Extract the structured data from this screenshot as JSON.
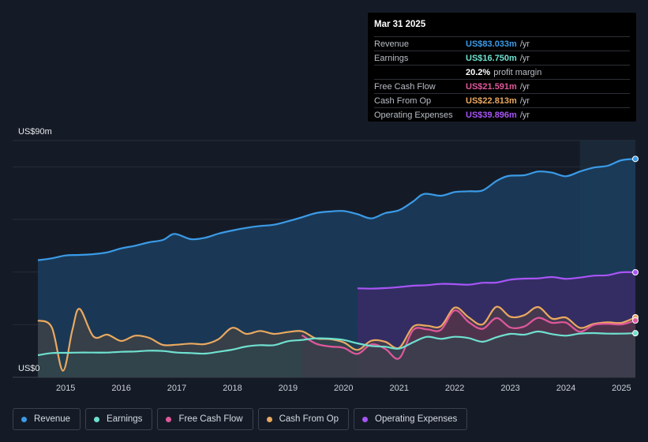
{
  "tooltip": {
    "date": "Mar 31 2025",
    "rows": [
      {
        "label": "Revenue",
        "value": "US$83.033m",
        "unit": "/yr",
        "color": "#3b9be8"
      },
      {
        "label": "Earnings",
        "value": "US$16.750m",
        "unit": "/yr",
        "color": "#6fe0cf"
      },
      {
        "label": "",
        "value": "20.2%",
        "unit": "profit margin",
        "color": "#ffffff"
      },
      {
        "label": "Free Cash Flow",
        "value": "US$21.591m",
        "unit": "/yr",
        "color": "#e0589b"
      },
      {
        "label": "Cash From Op",
        "value": "US$22.813m",
        "unit": "/yr",
        "color": "#eaa960"
      },
      {
        "label": "Operating Expenses",
        "value": "US$39.896m",
        "unit": "/yr",
        "color": "#a855f7"
      }
    ]
  },
  "legend": [
    {
      "label": "Revenue",
      "color": "#3b9be8"
    },
    {
      "label": "Earnings",
      "color": "#6fe0cf"
    },
    {
      "label": "Free Cash Flow",
      "color": "#e0589b"
    },
    {
      "label": "Cash From Op",
      "color": "#eaa960"
    },
    {
      "label": "Operating Expenses",
      "color": "#a855f7"
    }
  ],
  "chart_data": {
    "type": "area",
    "title": "",
    "y_top_label": "US$90m",
    "y_bottom_label": "US$0",
    "ylim": [
      0,
      90
    ],
    "xlim": [
      2014.5,
      2025.25
    ],
    "x_ticks": [
      "2015",
      "2016",
      "2017",
      "2018",
      "2019",
      "2020",
      "2021",
      "2022",
      "2023",
      "2024",
      "2025"
    ],
    "highlight_from": 2024.25,
    "series": [
      {
        "name": "Revenue",
        "color": "#3b9be8",
        "points": [
          [
            2014.5,
            44.5
          ],
          [
            2014.75,
            45.2
          ],
          [
            2015.0,
            46.3
          ],
          [
            2015.25,
            46.5
          ],
          [
            2015.5,
            46.8
          ],
          [
            2015.75,
            47.5
          ],
          [
            2016.0,
            49.0
          ],
          [
            2016.25,
            50.0
          ],
          [
            2016.5,
            51.3
          ],
          [
            2016.75,
            52.2
          ],
          [
            2016.96,
            54.5
          ],
          [
            2017.25,
            52.5
          ],
          [
            2017.5,
            53.0
          ],
          [
            2017.75,
            54.6
          ],
          [
            2018.0,
            55.8
          ],
          [
            2018.25,
            56.8
          ],
          [
            2018.5,
            57.5
          ],
          [
            2018.75,
            58.0
          ],
          [
            2019.0,
            59.3
          ],
          [
            2019.25,
            60.8
          ],
          [
            2019.5,
            62.4
          ],
          [
            2019.75,
            63.0
          ],
          [
            2020.0,
            63.2
          ],
          [
            2020.25,
            62.0
          ],
          [
            2020.5,
            60.4
          ],
          [
            2020.75,
            62.4
          ],
          [
            2021.0,
            63.5
          ],
          [
            2021.25,
            66.8
          ],
          [
            2021.45,
            69.7
          ],
          [
            2021.75,
            69.0
          ],
          [
            2022.0,
            70.4
          ],
          [
            2022.25,
            70.7
          ],
          [
            2022.5,
            71.0
          ],
          [
            2022.75,
            74.6
          ],
          [
            2022.96,
            76.5
          ],
          [
            2023.25,
            76.8
          ],
          [
            2023.5,
            78.2
          ],
          [
            2023.75,
            77.8
          ],
          [
            2024.0,
            76.4
          ],
          [
            2024.25,
            78.2
          ],
          [
            2024.5,
            79.7
          ],
          [
            2024.75,
            80.4
          ],
          [
            2025.0,
            82.5
          ],
          [
            2025.25,
            83.0
          ]
        ]
      },
      {
        "name": "Operating Expenses",
        "color": "#a855f7",
        "points": [
          [
            2020.25,
            33.8
          ],
          [
            2020.5,
            33.7
          ],
          [
            2020.75,
            33.9
          ],
          [
            2021.0,
            34.3
          ],
          [
            2021.25,
            34.8
          ],
          [
            2021.5,
            35.0
          ],
          [
            2021.75,
            35.5
          ],
          [
            2022.0,
            35.4
          ],
          [
            2022.25,
            35.2
          ],
          [
            2022.5,
            35.9
          ],
          [
            2022.75,
            36.0
          ],
          [
            2023.0,
            37.1
          ],
          [
            2023.25,
            37.5
          ],
          [
            2023.5,
            37.6
          ],
          [
            2023.75,
            38.1
          ],
          [
            2024.0,
            37.4
          ],
          [
            2024.25,
            37.9
          ],
          [
            2024.5,
            38.6
          ],
          [
            2024.75,
            38.8
          ],
          [
            2025.0,
            39.9
          ],
          [
            2025.25,
            39.9
          ]
        ]
      },
      {
        "name": "Cash From Op",
        "color": "#eaa960",
        "points": [
          [
            2014.5,
            21.6
          ],
          [
            2014.75,
            19.0
          ],
          [
            2014.95,
            2.5
          ],
          [
            2015.12,
            18.0
          ],
          [
            2015.25,
            26.0
          ],
          [
            2015.5,
            15.5
          ],
          [
            2015.75,
            16.2
          ],
          [
            2016.0,
            13.8
          ],
          [
            2016.25,
            15.8
          ],
          [
            2016.5,
            15.0
          ],
          [
            2016.75,
            12.3
          ],
          [
            2017.0,
            12.4
          ],
          [
            2017.25,
            12.8
          ],
          [
            2017.5,
            12.6
          ],
          [
            2017.75,
            14.5
          ],
          [
            2018.0,
            18.8
          ],
          [
            2018.25,
            16.5
          ],
          [
            2018.5,
            17.6
          ],
          [
            2018.75,
            16.5
          ],
          [
            2019.0,
            17.2
          ],
          [
            2019.25,
            17.5
          ],
          [
            2019.5,
            14.8
          ],
          [
            2019.75,
            14.5
          ],
          [
            2020.0,
            13.3
          ],
          [
            2020.25,
            10.4
          ],
          [
            2020.5,
            13.9
          ],
          [
            2020.75,
            13.5
          ],
          [
            2021.0,
            11.2
          ],
          [
            2021.25,
            19.2
          ],
          [
            2021.5,
            19.6
          ],
          [
            2021.75,
            19.4
          ],
          [
            2022.0,
            26.5
          ],
          [
            2022.25,
            22.8
          ],
          [
            2022.5,
            20.1
          ],
          [
            2022.75,
            26.8
          ],
          [
            2023.0,
            23.0
          ],
          [
            2023.25,
            23.6
          ],
          [
            2023.5,
            26.7
          ],
          [
            2023.75,
            22.3
          ],
          [
            2024.0,
            22.7
          ],
          [
            2024.25,
            18.8
          ],
          [
            2024.5,
            20.3
          ],
          [
            2024.75,
            20.9
          ],
          [
            2025.0,
            20.7
          ],
          [
            2025.25,
            22.8
          ]
        ]
      },
      {
        "name": "Free Cash Flow",
        "color": "#e0589b",
        "points": [
          [
            2019.25,
            16.0
          ],
          [
            2019.5,
            12.8
          ],
          [
            2019.75,
            11.7
          ],
          [
            2020.0,
            11.2
          ],
          [
            2020.25,
            8.9
          ],
          [
            2020.5,
            12.5
          ],
          [
            2020.75,
            10.8
          ],
          [
            2021.0,
            7.2
          ],
          [
            2021.25,
            17.9
          ],
          [
            2021.5,
            18.2
          ],
          [
            2021.75,
            18.0
          ],
          [
            2022.0,
            25.4
          ],
          [
            2022.25,
            21.0
          ],
          [
            2022.5,
            18.4
          ],
          [
            2022.75,
            22.5
          ],
          [
            2023.0,
            18.9
          ],
          [
            2023.25,
            19.3
          ],
          [
            2023.5,
            22.6
          ],
          [
            2023.75,
            20.7
          ],
          [
            2024.0,
            20.8
          ],
          [
            2024.25,
            17.3
          ],
          [
            2024.5,
            19.9
          ],
          [
            2024.75,
            20.3
          ],
          [
            2025.0,
            20.1
          ],
          [
            2025.25,
            21.6
          ]
        ]
      },
      {
        "name": "Earnings",
        "color": "#6fe0cf",
        "points": [
          [
            2014.5,
            8.4
          ],
          [
            2014.75,
            9.2
          ],
          [
            2015.0,
            9.3
          ],
          [
            2015.25,
            9.4
          ],
          [
            2015.5,
            9.4
          ],
          [
            2015.75,
            9.4
          ],
          [
            2016.0,
            9.7
          ],
          [
            2016.25,
            9.8
          ],
          [
            2016.5,
            10.1
          ],
          [
            2016.75,
            10.0
          ],
          [
            2017.0,
            9.4
          ],
          [
            2017.25,
            9.2
          ],
          [
            2017.5,
            9.0
          ],
          [
            2017.75,
            9.7
          ],
          [
            2018.0,
            10.5
          ],
          [
            2018.25,
            11.7
          ],
          [
            2018.5,
            12.2
          ],
          [
            2018.75,
            12.2
          ],
          [
            2019.0,
            13.7
          ],
          [
            2019.25,
            14.2
          ],
          [
            2019.5,
            14.8
          ],
          [
            2019.75,
            14.7
          ],
          [
            2020.0,
            14.2
          ],
          [
            2020.25,
            12.9
          ],
          [
            2020.5,
            11.9
          ],
          [
            2020.75,
            11.6
          ],
          [
            2021.0,
            10.9
          ],
          [
            2021.25,
            13.3
          ],
          [
            2021.5,
            15.4
          ],
          [
            2021.75,
            14.6
          ],
          [
            2022.0,
            15.4
          ],
          [
            2022.25,
            14.9
          ],
          [
            2022.5,
            13.5
          ],
          [
            2022.75,
            15.2
          ],
          [
            2023.0,
            16.5
          ],
          [
            2023.25,
            16.2
          ],
          [
            2023.5,
            17.4
          ],
          [
            2023.75,
            16.4
          ],
          [
            2024.0,
            15.8
          ],
          [
            2024.25,
            16.6
          ],
          [
            2024.5,
            16.8
          ],
          [
            2024.75,
            16.6
          ],
          [
            2025.0,
            16.6
          ],
          [
            2025.25,
            16.75
          ]
        ]
      }
    ]
  }
}
